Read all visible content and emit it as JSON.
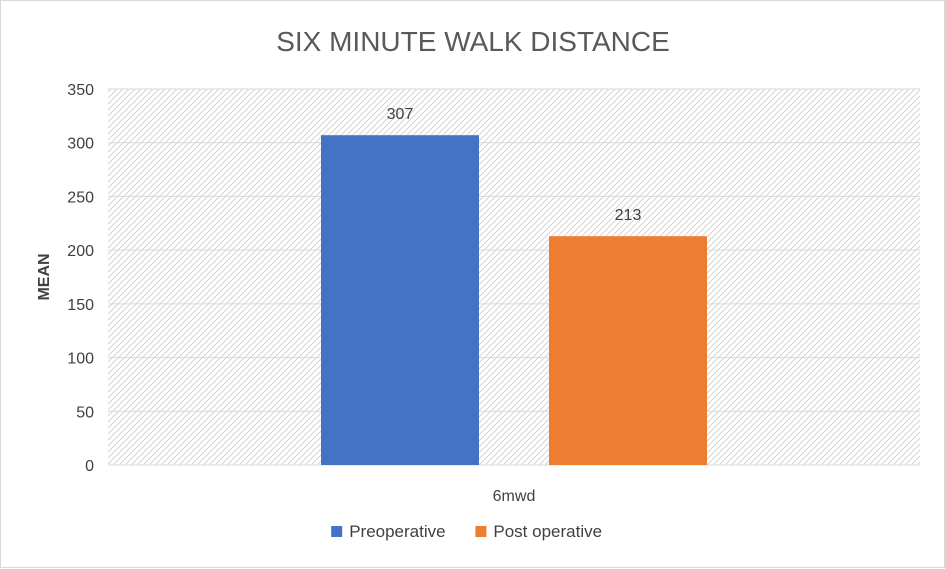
{
  "chart_data": {
    "type": "bar",
    "title": "SIX MINUTE WALK DISTANCE",
    "xlabel": "",
    "ylabel": "MEAN",
    "categories": [
      "6mwd"
    ],
    "series": [
      {
        "name": "Preoperative",
        "values": [
          307
        ],
        "color": "#4472c4"
      },
      {
        "name": "Post operative",
        "values": [
          213
        ],
        "color": "#ed7d31"
      }
    ],
    "ylim": [
      0,
      350
    ],
    "yticks": [
      0,
      50,
      100,
      150,
      200,
      250,
      300,
      350
    ],
    "grid": true,
    "legend": "bottom",
    "data_labels": true
  }
}
